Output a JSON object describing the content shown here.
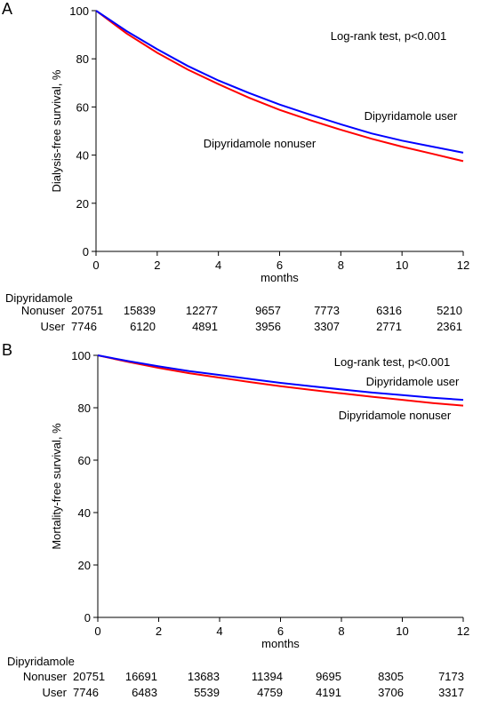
{
  "chart_data": [
    {
      "panel_label": "A",
      "type": "line",
      "title": "",
      "xlabel": "months",
      "ylabel": "Dialysis-free survival, %",
      "xlim": [
        0,
        12
      ],
      "ylim": [
        0,
        100
      ],
      "x_ticks": [
        0,
        2,
        4,
        6,
        8,
        10,
        12
      ],
      "y_ticks": [
        0,
        20,
        40,
        60,
        80,
        100
      ],
      "grid": false,
      "annotation": "Log-rank test, p<0.001",
      "series": [
        {
          "name": "Dipyridamole user",
          "color": "#0000ff",
          "x": [
            0,
            1,
            2,
            3,
            4,
            5,
            6,
            7,
            8,
            9,
            10,
            11,
            12
          ],
          "y": [
            100,
            91.5,
            84,
            77,
            71,
            65.8,
            61,
            56.8,
            52.8,
            49,
            46,
            43.5,
            41
          ]
        },
        {
          "name": "Dipyridamole nonuser",
          "color": "#ff0000",
          "x": [
            0,
            1,
            2,
            3,
            4,
            5,
            6,
            7,
            8,
            9,
            10,
            11,
            12
          ],
          "y": [
            100,
            90.5,
            82.5,
            75.5,
            69.5,
            63.8,
            58.8,
            54.5,
            50.5,
            46.8,
            43.5,
            40.5,
            37.5
          ]
        }
      ],
      "risk_table": {
        "header": "Dipyridamole",
        "rows": [
          {
            "label": "Nonuser",
            "values": [
              "20751",
              "15839",
              "12277",
              "9657",
              "7773",
              "6316",
              "5210"
            ]
          },
          {
            "label": "User",
            "values": [
              "7746",
              "6120",
              "4891",
              "3956",
              "3307",
              "2771",
              "2361"
            ]
          }
        ]
      }
    },
    {
      "panel_label": "B",
      "type": "line",
      "title": "",
      "xlabel": "months",
      "ylabel": "Mortality-free survival, %",
      "xlim": [
        0,
        12
      ],
      "ylim": [
        0,
        100
      ],
      "x_ticks": [
        0,
        2,
        4,
        6,
        8,
        10,
        12
      ],
      "y_ticks": [
        0,
        20,
        40,
        60,
        80,
        100
      ],
      "grid": false,
      "annotation": "Log-rank test, p<0.001",
      "series": [
        {
          "name": "Dipyridamole user",
          "color": "#0000ff",
          "x": [
            0,
            1,
            2,
            3,
            4,
            5,
            6,
            7,
            8,
            9,
            10,
            11,
            12
          ],
          "y": [
            100,
            97.8,
            95.8,
            94,
            92.5,
            91,
            89.5,
            88.2,
            87,
            85.8,
            84.8,
            83.8,
            83
          ]
        },
        {
          "name": "Dipyridamole nonuser",
          "color": "#ff0000",
          "x": [
            0,
            1,
            2,
            3,
            4,
            5,
            6,
            7,
            8,
            9,
            10,
            11,
            12
          ],
          "y": [
            100,
            97.5,
            95.2,
            93.2,
            91.5,
            89.8,
            88.2,
            86.8,
            85.5,
            84.2,
            83,
            81.8,
            80.8
          ]
        }
      ],
      "risk_table": {
        "header": "Dipyridamole",
        "rows": [
          {
            "label": "Nonuser",
            "values": [
              "20751",
              "16691",
              "13683",
              "11394",
              "9695",
              "8305",
              "7173"
            ]
          },
          {
            "label": "User",
            "values": [
              "7746",
              "6483",
              "5539",
              "4759",
              "4191",
              "3706",
              "3317"
            ]
          }
        ]
      }
    }
  ]
}
